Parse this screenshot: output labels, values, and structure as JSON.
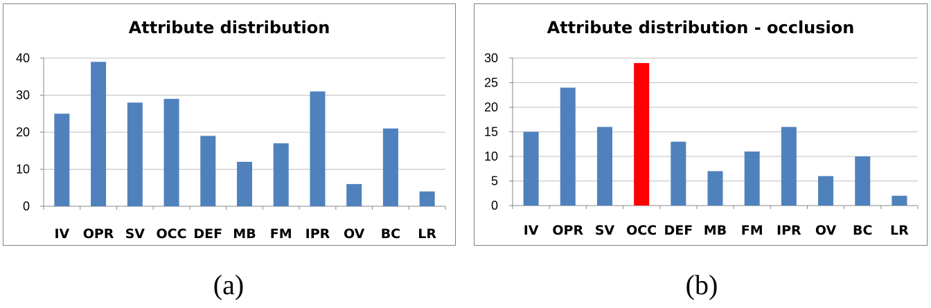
{
  "figure": {
    "caption_a": "(a)",
    "caption_b": "(b)"
  },
  "chart_data": [
    {
      "type": "bar",
      "title": "Attribute distribution",
      "categories": [
        "IV",
        "OPR",
        "SV",
        "OCC",
        "DEF",
        "MB",
        "FM",
        "IPR",
        "OV",
        "BC",
        "LR"
      ],
      "values": [
        25,
        39,
        28,
        29,
        19,
        12,
        17,
        31,
        6,
        21,
        4
      ],
      "ylim": [
        0,
        40
      ],
      "yticks": [
        0,
        10,
        20,
        30,
        40
      ],
      "grid": true,
      "legend": "none",
      "bar_color": "#4F81BD",
      "highlight": null
    },
    {
      "type": "bar",
      "title": "Attribute distribution - occlusion",
      "categories": [
        "IV",
        "OPR",
        "SV",
        "OCC",
        "DEF",
        "MB",
        "FM",
        "IPR",
        "OV",
        "BC",
        "LR"
      ],
      "values": [
        15,
        24,
        16,
        29,
        13,
        7,
        11,
        16,
        6,
        10,
        2
      ],
      "ylim": [
        0,
        30
      ],
      "yticks": [
        0,
        5,
        10,
        15,
        20,
        25,
        30
      ],
      "grid": true,
      "legend": "none",
      "bar_color": "#4F81BD",
      "highlight": {
        "category": "OCC",
        "color": "#FF0000"
      }
    }
  ]
}
